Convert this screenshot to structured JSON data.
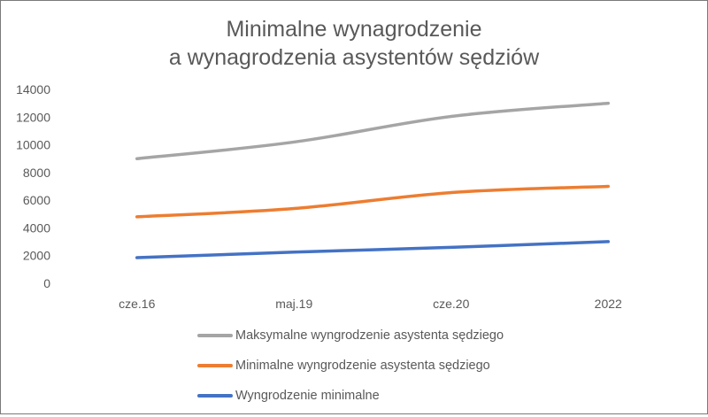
{
  "chart_data": {
    "type": "line",
    "title_line1": "Minimalne wynagrodzenie",
    "title_line2": "a wynagrodzenia asystentów sędziów",
    "categories": [
      "cze.16",
      "maj.19",
      "cze.20",
      "2022"
    ],
    "ylim": [
      0,
      14000
    ],
    "yticks": [
      0,
      2000,
      4000,
      6000,
      8000,
      10000,
      12000,
      14000
    ],
    "grid": false,
    "legend_position": "bottom",
    "series": [
      {
        "name": "Maksymalne wyngrodzenie asystenta sędziego",
        "color": "#a5a5a5",
        "values": [
          9000,
          10200,
          12050,
          13000
        ]
      },
      {
        "name": "Minimalne wyngrodzenie asystenta sędziego",
        "color": "#ed7d31",
        "values": [
          4800,
          5400,
          6550,
          7000
        ]
      },
      {
        "name": "Wyngrodzenie minimalne",
        "color": "#4472c4",
        "values": [
          1850,
          2250,
          2600,
          3010
        ]
      }
    ]
  }
}
